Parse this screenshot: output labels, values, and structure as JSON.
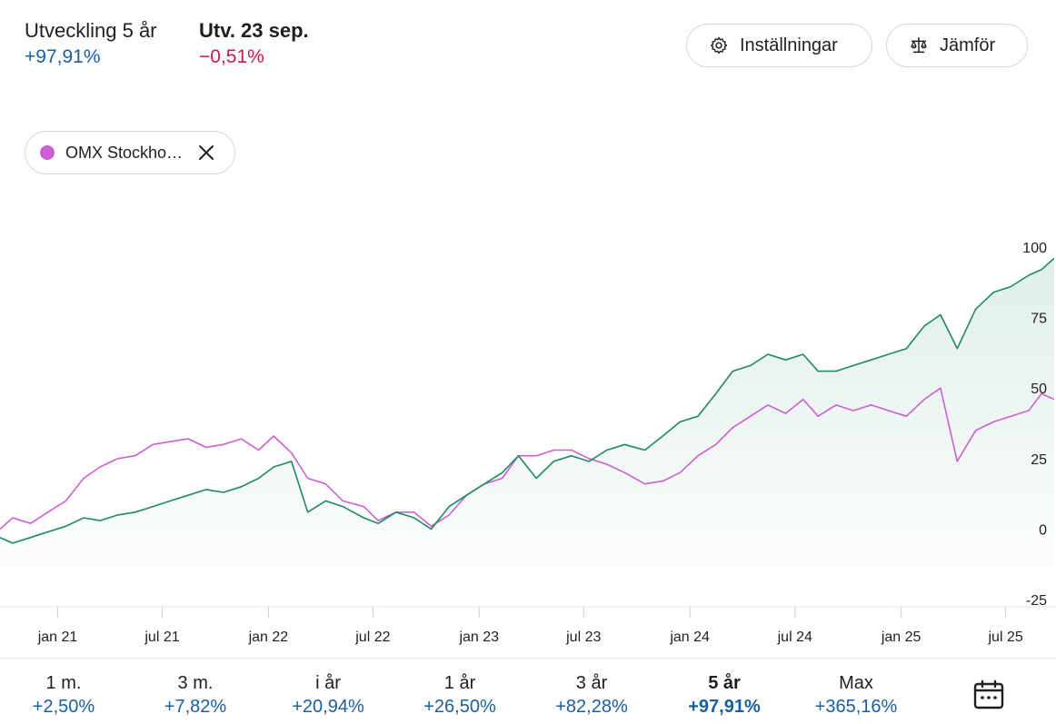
{
  "header": {
    "dev_label": "Utveckling 5 år",
    "dev_value": "+97,91%",
    "day_label": "Utv. 23 sep.",
    "day_value": "−0,51%"
  },
  "buttons": {
    "settings_label": "Inställningar",
    "compare_label": "Jämför"
  },
  "compare_chip": {
    "label": "OMX Stockhol...",
    "color": "#cc5fd6"
  },
  "colors": {
    "primary_line": "#1e8a5e",
    "compare_line": "#cc5fd6",
    "positive": "#1a5fa0",
    "negative": "#c8184a"
  },
  "chart_data": {
    "type": "line",
    "ylim": [
      -25,
      100
    ],
    "y_ticks": [
      "100",
      "75",
      "50",
      "25",
      "0",
      "-25"
    ],
    "y_tick_values": [
      100,
      75,
      50,
      25,
      0,
      -25
    ],
    "x_ticks": [
      "jan 21",
      "jul 21",
      "jan 22",
      "jul 22",
      "jan 23",
      "jul 23",
      "jan 24",
      "jul 24",
      "jan 25",
      "jul 25"
    ],
    "x_tick_values": [
      "2021-01-01",
      "2021-07-01",
      "2022-01-01",
      "2022-07-01",
      "2023-01-01",
      "2023-07-01",
      "2024-01-01",
      "2024-07-01",
      "2025-01-01",
      "2025-07-01"
    ],
    "x_range": [
      "2020-09-23",
      "2025-09-23"
    ],
    "grid": false,
    "area_fill_under": "primary",
    "series": [
      {
        "role": "primary",
        "x": [
          "2020-09-23",
          "2020-10-15",
          "2020-11-15",
          "2020-12-15",
          "2021-01-15",
          "2021-02-15",
          "2021-03-15",
          "2021-04-15",
          "2021-05-15",
          "2021-06-15",
          "2021-07-15",
          "2021-08-15",
          "2021-09-15",
          "2021-10-15",
          "2021-11-15",
          "2021-12-15",
          "2022-01-10",
          "2022-02-10",
          "2022-03-10",
          "2022-04-10",
          "2022-05-10",
          "2022-06-15",
          "2022-07-10",
          "2022-08-10",
          "2022-09-10",
          "2022-10-10",
          "2022-11-10",
          "2022-12-10",
          "2023-01-10",
          "2023-02-10",
          "2023-03-10",
          "2023-04-10",
          "2023-05-10",
          "2023-06-10",
          "2023-07-10",
          "2023-08-10",
          "2023-09-10",
          "2023-10-15",
          "2023-11-15",
          "2023-12-15",
          "2024-01-15",
          "2024-02-15",
          "2024-03-15",
          "2024-04-15",
          "2024-05-15",
          "2024-06-15",
          "2024-07-15",
          "2024-08-10",
          "2024-09-10",
          "2024-10-10",
          "2024-11-10",
          "2024-12-10",
          "2025-01-10",
          "2025-02-10",
          "2025-03-10",
          "2025-04-08",
          "2025-05-10",
          "2025-06-10",
          "2025-07-10",
          "2025-08-10",
          "2025-09-01",
          "2025-09-23"
        ],
        "values": [
          -3,
          -5,
          -3,
          -1,
          1,
          4,
          3,
          5,
          6,
          8,
          10,
          12,
          14,
          13,
          15,
          18,
          22,
          24,
          6,
          10,
          8,
          4,
          2,
          6,
          4,
          0,
          8,
          12,
          16,
          20,
          26,
          18,
          24,
          26,
          24,
          28,
          30,
          28,
          33,
          38,
          40,
          48,
          56,
          58,
          62,
          60,
          62,
          56,
          56,
          58,
          60,
          62,
          64,
          72,
          76,
          64,
          78,
          84,
          86,
          90,
          92,
          96
        ]
      },
      {
        "role": "compare",
        "name": "OMX Stockhol...",
        "x": [
          "2020-09-23",
          "2020-10-15",
          "2020-11-15",
          "2020-12-15",
          "2021-01-15",
          "2021-02-15",
          "2021-03-15",
          "2021-04-15",
          "2021-05-15",
          "2021-06-15",
          "2021-07-15",
          "2021-08-15",
          "2021-09-15",
          "2021-10-15",
          "2021-11-15",
          "2021-12-15",
          "2022-01-10",
          "2022-02-10",
          "2022-03-10",
          "2022-04-10",
          "2022-05-10",
          "2022-06-15",
          "2022-07-10",
          "2022-08-10",
          "2022-09-10",
          "2022-10-10",
          "2022-11-10",
          "2022-12-10",
          "2023-01-10",
          "2023-02-10",
          "2023-03-10",
          "2023-04-10",
          "2023-05-10",
          "2023-06-10",
          "2023-07-10",
          "2023-08-10",
          "2023-09-10",
          "2023-10-15",
          "2023-11-15",
          "2023-12-15",
          "2024-01-15",
          "2024-02-15",
          "2024-03-15",
          "2024-04-15",
          "2024-05-15",
          "2024-06-15",
          "2024-07-15",
          "2024-08-10",
          "2024-09-10",
          "2024-10-10",
          "2024-11-10",
          "2024-12-10",
          "2025-01-10",
          "2025-02-10",
          "2025-03-10",
          "2025-04-08",
          "2025-05-10",
          "2025-06-10",
          "2025-07-10",
          "2025-08-10",
          "2025-09-01",
          "2025-09-23"
        ],
        "values": [
          0,
          4,
          2,
          6,
          10,
          18,
          22,
          25,
          26,
          30,
          31,
          32,
          29,
          30,
          32,
          28,
          33,
          27,
          18,
          16,
          10,
          8,
          3,
          6,
          6,
          1,
          5,
          12,
          16,
          18,
          26,
          26,
          28,
          28,
          25,
          23,
          20,
          16,
          17,
          20,
          26,
          30,
          36,
          40,
          44,
          41,
          46,
          40,
          44,
          42,
          44,
          42,
          40,
          46,
          50,
          24,
          35,
          38,
          40,
          42,
          48,
          46
        ]
      }
    ]
  },
  "periods": [
    {
      "label": "1 m.",
      "value": "+2,50%"
    },
    {
      "label": "3 m.",
      "value": "+7,82%"
    },
    {
      "label": "i år",
      "value": "+20,94%"
    },
    {
      "label": "1 år",
      "value": "+26,50%"
    },
    {
      "label": "3 år",
      "value": "+82,28%"
    },
    {
      "label": "5 år",
      "value": "+97,91%",
      "active": true
    },
    {
      "label": "Max",
      "value": "+365,16%"
    }
  ]
}
